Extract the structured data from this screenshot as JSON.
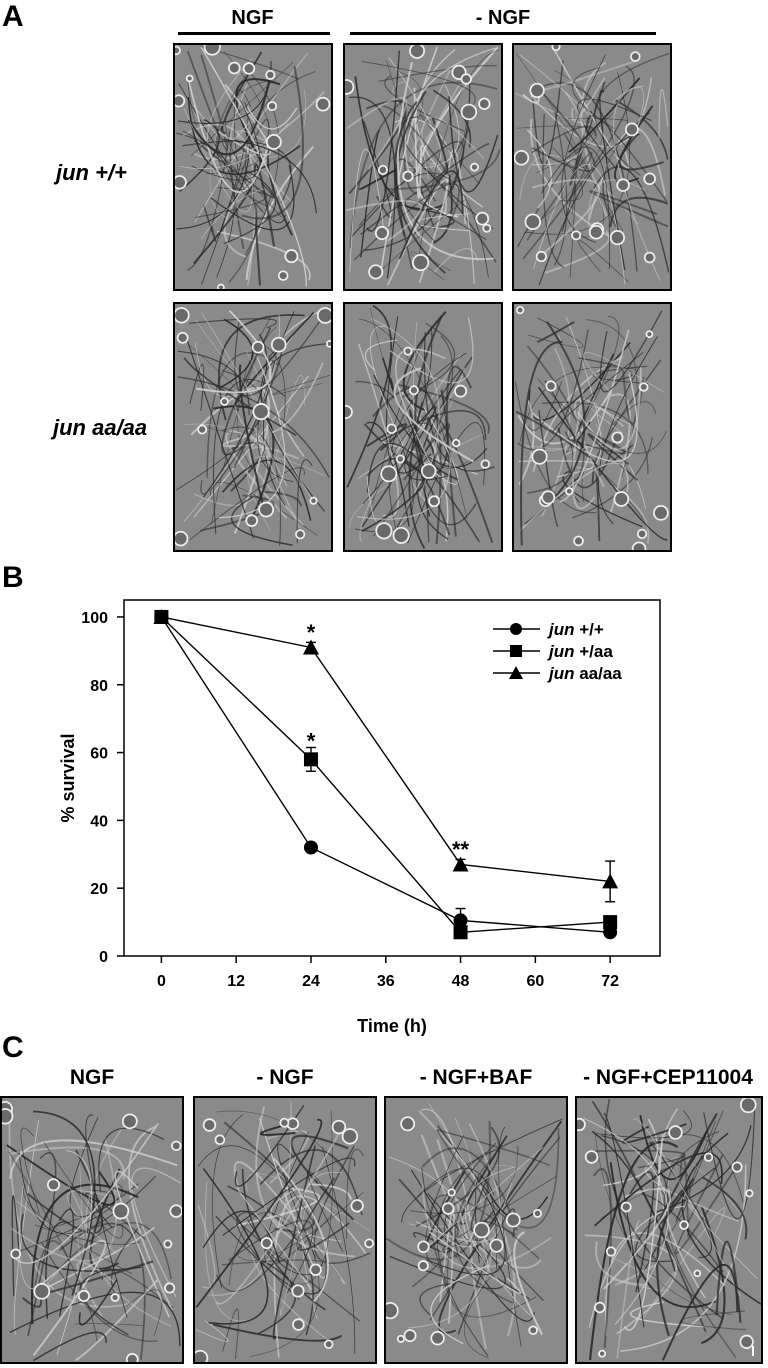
{
  "panels": {
    "a": {
      "letter": "A"
    },
    "b": {
      "letter": "B"
    },
    "c": {
      "letter": "C"
    }
  },
  "panel_a": {
    "headers": [
      "NGF",
      "- NGF"
    ],
    "rows": [
      "jun +/+",
      "jun aa/aa"
    ]
  },
  "panel_c": {
    "headers": [
      "NGF",
      "- NGF",
      "- NGF+BAF",
      "- NGF+CEP11004"
    ]
  },
  "colors": {
    "micrograph_bg": "#8a8a8a",
    "fiber": "#2a2a2a",
    "cell": "#eeeeee"
  },
  "chart_data": {
    "type": "line",
    "xlabel": "Time (h)",
    "ylabel": "% survival",
    "xlim": [
      -6,
      80
    ],
    "ylim": [
      0,
      105
    ],
    "xticks": [
      0,
      12,
      24,
      36,
      48,
      60,
      72
    ],
    "yticks": [
      0,
      20,
      40,
      60,
      80,
      100
    ],
    "grid": false,
    "legend_position": "top-right",
    "series": [
      {
        "name": "+/+",
        "italic_prefix": "jun",
        "marker": "circle",
        "points": [
          {
            "x": 0,
            "y": 100,
            "err": 0
          },
          {
            "x": 24,
            "y": 32,
            "err": 1
          },
          {
            "x": 48,
            "y": 10.5,
            "err": 3.5
          },
          {
            "x": 72,
            "y": 7,
            "err": 1
          }
        ]
      },
      {
        "name": "+/aa",
        "italic_prefix": "jun",
        "marker": "square",
        "points": [
          {
            "x": 0,
            "y": 100,
            "err": 0
          },
          {
            "x": 24,
            "y": 58,
            "err": 3.5
          },
          {
            "x": 48,
            "y": 7,
            "err": 1
          },
          {
            "x": 72,
            "y": 10,
            "err": 1
          }
        ]
      },
      {
        "name": "aa/aa",
        "italic_prefix": "jun",
        "marker": "triangle",
        "points": [
          {
            "x": 0,
            "y": 100,
            "err": 0
          },
          {
            "x": 24,
            "y": 91,
            "err": 1.5
          },
          {
            "x": 48,
            "y": 27,
            "err": 1.5
          },
          {
            "x": 72,
            "y": 22,
            "err": 6
          }
        ]
      }
    ],
    "annotations": [
      {
        "text": "*",
        "x": 24,
        "y": 95
      },
      {
        "text": "*",
        "x": 24,
        "y": 63
      },
      {
        "text": "**",
        "x": 48,
        "y": 31
      }
    ]
  }
}
